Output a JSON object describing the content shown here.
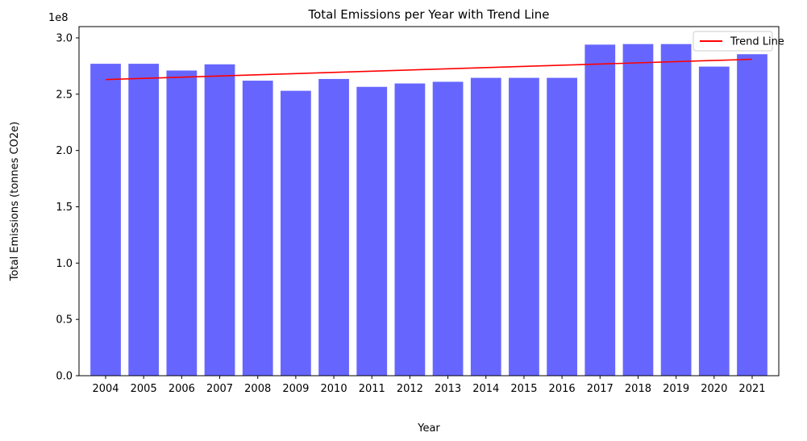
{
  "chart_data": {
    "type": "bar",
    "title": "Total Emissions per Year with Trend Line",
    "xlabel": "Year",
    "ylabel": "Total Emissions (tonnes CO2e)",
    "y_offset_label": "1e8",
    "ylim": [
      0,
      3.1
    ],
    "yticks": [
      "0.0",
      "0.5",
      "1.0",
      "1.5",
      "2.0",
      "2.5",
      "3.0"
    ],
    "categories": [
      "2004",
      "2005",
      "2006",
      "2007",
      "2008",
      "2009",
      "2010",
      "2011",
      "2012",
      "2013",
      "2014",
      "2015",
      "2016",
      "2017",
      "2018",
      "2019",
      "2020",
      "2021"
    ],
    "series": [
      {
        "kind": "bar",
        "color": "#6666ff",
        "values": [
          2.77,
          2.77,
          2.71,
          2.765,
          2.62,
          2.53,
          2.635,
          2.565,
          2.595,
          2.61,
          2.645,
          2.645,
          2.645,
          2.94,
          2.945,
          2.945,
          2.745,
          2.855
        ]
      },
      {
        "kind": "line",
        "name": "Trend Line",
        "color": "#ff0000",
        "x": [
          "2004",
          "2021"
        ],
        "values": [
          2.63,
          2.81
        ]
      }
    ],
    "legend_position": "top-right",
    "grid": false
  }
}
